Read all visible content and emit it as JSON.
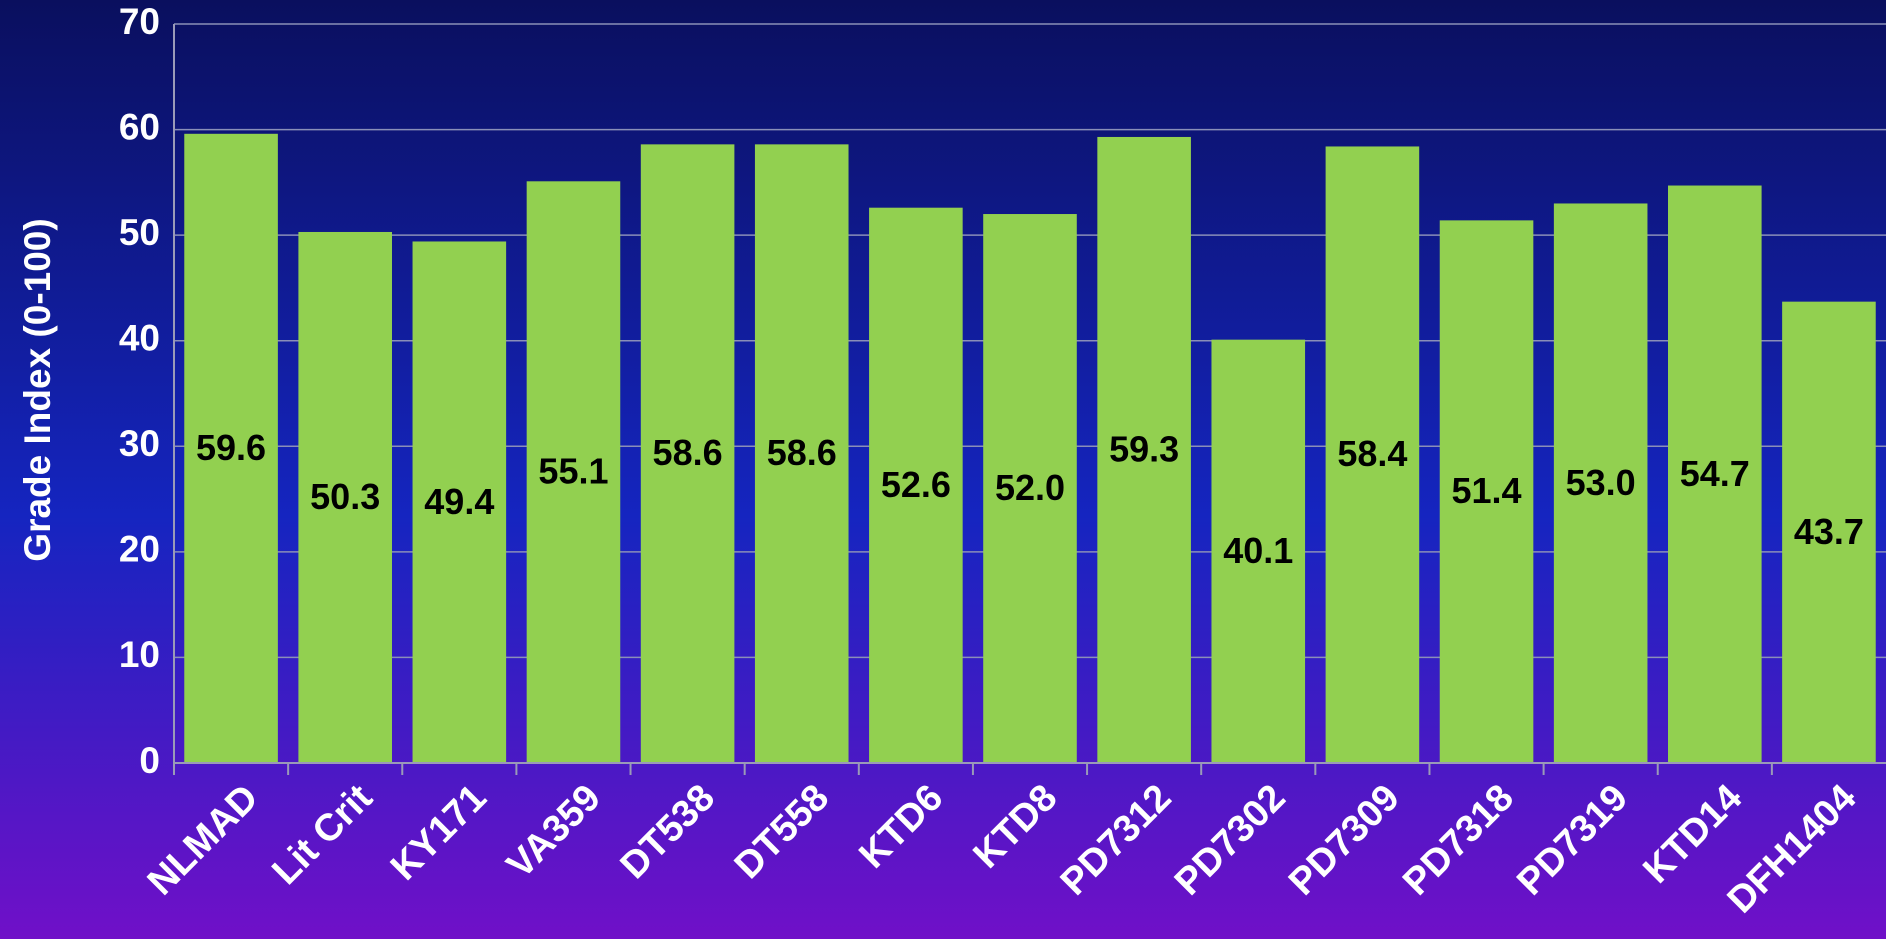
{
  "chart_data": {
    "type": "bar",
    "y_label": "Grade Index (0-100)",
    "categories": [
      "NLMAD",
      "Lit Crit",
      "KY171",
      "VA359",
      "DT538",
      "DT558",
      "KTD6",
      "KTD8",
      "PD7312",
      "PD7302",
      "PD7309",
      "PD7318",
      "PD7319",
      "KTD14",
      "DFH1404"
    ],
    "values": [
      59.6,
      50.3,
      49.4,
      55.1,
      58.6,
      58.6,
      52.6,
      52.0,
      59.3,
      40.1,
      58.4,
      51.4,
      53.0,
      54.7,
      43.7
    ],
    "value_labels": [
      "59.6",
      "50.3",
      "49.4",
      "55.1",
      "58.6",
      "58.6",
      "52.6",
      "52.0",
      "59.3",
      "40.1",
      "58.4",
      "51.4",
      "53.0",
      "54.7",
      "43.7"
    ],
    "color": "#92d050",
    "ylim": [
      0,
      70
    ],
    "yticks": [
      0,
      10,
      20,
      30,
      40,
      50,
      60,
      70
    ],
    "grid": true
  }
}
